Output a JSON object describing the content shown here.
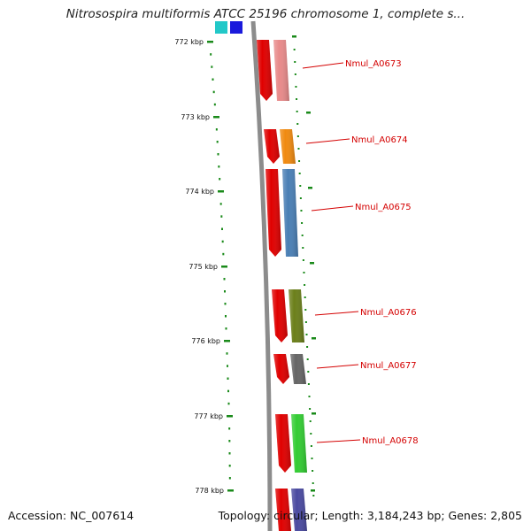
{
  "title": "Nitrosospira multiformis ATCC 25196 chromosome 1, complete s...",
  "footer": {
    "accession": "Accession: NC_007614",
    "stats": "Topology: circular; Length: 3,184,243 bp; Genes: 2,805"
  },
  "colors": {
    "tick": "#1a8a1a",
    "label": "#d40000",
    "backbone": "#8c8c8c",
    "cds": "#e00000"
  },
  "ticks": [
    "772 kbp",
    "773 kbp",
    "774 kbp",
    "775 kbp",
    "776 kbp",
    "777 kbp",
    "778 kbp"
  ],
  "genes": [
    {
      "label": "Nmul_A0673",
      "color": "#e88a8a"
    },
    {
      "label": "Nmul_A0674",
      "color": "#f08a10"
    },
    {
      "label": "Nmul_A0675",
      "color": "#4a7fb5"
    },
    {
      "label": "Nmul_A0676",
      "color": "#6b7f1a"
    },
    {
      "label": "Nmul_A0677",
      "color": "#666666"
    },
    {
      "label": "Nmul_A0678",
      "color": "#33cc33"
    },
    {
      "label": "",
      "color": "#4a4aa0"
    }
  ]
}
